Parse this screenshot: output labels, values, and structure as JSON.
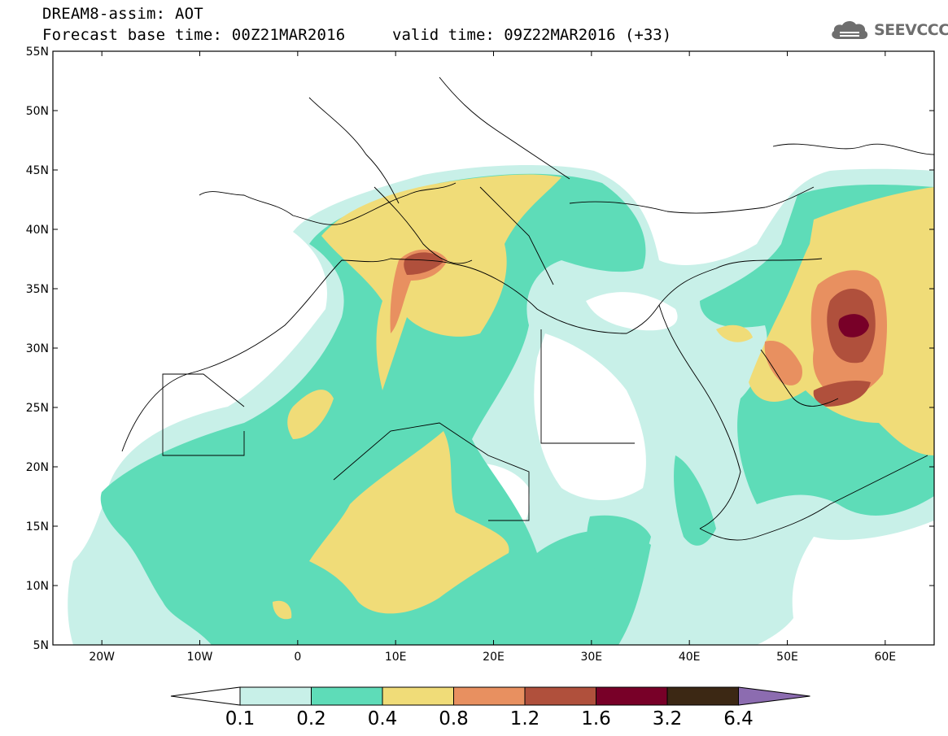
{
  "header": {
    "line1": "DREAM8-assim: AOT",
    "line2": "Forecast base time: 00Z21MAR2016",
    "valid": "valid time: 09Z22MAR2016 (+33)"
  },
  "logo": {
    "text": "SEEVCCC",
    "icon": "cloud-icon"
  },
  "map": {
    "lon_range": [
      -25,
      65
    ],
    "lat_range": [
      5,
      55
    ],
    "lon_ticks": [
      {
        "v": -20,
        "label": "20W"
      },
      {
        "v": -10,
        "label": "10W"
      },
      {
        "v": 0,
        "label": "0"
      },
      {
        "v": 10,
        "label": "10E"
      },
      {
        "v": 20,
        "label": "20E"
      },
      {
        "v": 30,
        "label": "30E"
      },
      {
        "v": 40,
        "label": "40E"
      },
      {
        "v": 50,
        "label": "50E"
      },
      {
        "v": 60,
        "label": "60E"
      }
    ],
    "lat_ticks": [
      {
        "v": 55,
        "label": "55N"
      },
      {
        "v": 50,
        "label": "50N"
      },
      {
        "v": 45,
        "label": "45N"
      },
      {
        "v": 40,
        "label": "40N"
      },
      {
        "v": 35,
        "label": "35N"
      },
      {
        "v": 30,
        "label": "30N"
      },
      {
        "v": 25,
        "label": "25N"
      },
      {
        "v": 20,
        "label": "20N"
      },
      {
        "v": 15,
        "label": "15N"
      },
      {
        "v": 10,
        "label": "10N"
      },
      {
        "v": 5,
        "label": "5N"
      }
    ]
  },
  "colorbar": {
    "labels": [
      "0.1",
      "0.2",
      "0.4",
      "0.8",
      "1.2",
      "1.6",
      "3.2",
      "6.4"
    ],
    "colors": [
      "#ffffff",
      "#c8f0e8",
      "#5edcb8",
      "#f0dc78",
      "#e89060",
      "#b0503c",
      "#780028",
      "#3c2814",
      "#8c6cb0"
    ]
  }
}
